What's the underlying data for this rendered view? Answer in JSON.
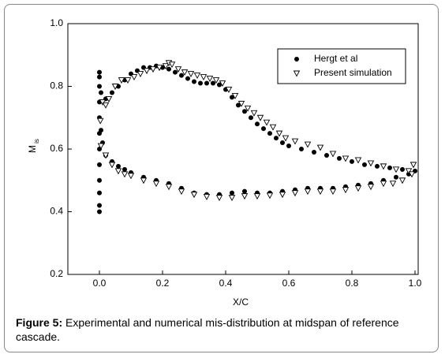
{
  "chart_data": {
    "type": "scatter",
    "xlabel": "X/C",
    "ylabel": "M",
    "ylabel_sub": "is",
    "xlim": [
      -0.1,
      1.01
    ],
    "ylim": [
      0.2,
      1.0
    ],
    "xticks": [
      {
        "value": 0,
        "label": "0.0"
      },
      {
        "value": 0.2,
        "label": "0.2"
      },
      {
        "value": 0.4,
        "label": "0.4"
      },
      {
        "value": 0.6,
        "label": "0.6"
      },
      {
        "value": 0.8,
        "label": "0.8"
      },
      {
        "value": 1.0,
        "label": "1.0"
      }
    ],
    "yticks": [
      {
        "value": 0.2,
        "label": "0.2"
      },
      0.4,
      0.6,
      0.8,
      {
        "value": 1.0,
        "label": "1.0"
      }
    ],
    "legend": "upper right",
    "series": [
      {
        "name": "Hergt et al",
        "color": "#000000",
        "marker": "circle",
        "x": [
          0,
          0,
          0,
          0,
          0,
          0,
          0,
          0,
          0,
          0,
          0,
          0,
          0.005,
          0.02,
          0.04,
          0.06,
          0.08,
          0.1,
          0.12,
          0.14,
          0.16,
          0.18,
          0.2,
          0.22,
          0.24,
          0.26,
          0.28,
          0.3,
          0.32,
          0.34,
          0.36,
          0.38,
          0.4,
          0.42,
          0.44,
          0.46,
          0.48,
          0.5,
          0.52,
          0.54,
          0.56,
          0.58,
          0.6,
          0.64,
          0.68,
          0.72,
          0.76,
          0.8,
          0.84,
          0.88,
          0.92,
          0.96,
          1.0,
          0.005,
          0.01,
          0.02,
          0.04,
          0.06,
          0.08,
          0.1,
          0.14,
          0.18,
          0.22,
          0.26,
          0.3,
          0.34,
          0.38,
          0.42,
          0.46,
          0.5,
          0.54,
          0.58,
          0.62,
          0.66,
          0.7,
          0.74,
          0.78,
          0.82,
          0.86,
          0.9,
          0.94,
          0.98
        ],
        "y": [
          0.4,
          0.42,
          0.46,
          0.5,
          0.55,
          0.6,
          0.65,
          0.7,
          0.75,
          0.8,
          0.83,
          0.845,
          0.78,
          0.76,
          0.78,
          0.8,
          0.82,
          0.84,
          0.85,
          0.86,
          0.86,
          0.865,
          0.86,
          0.855,
          0.845,
          0.835,
          0.825,
          0.815,
          0.81,
          0.81,
          0.81,
          0.805,
          0.79,
          0.765,
          0.74,
          0.72,
          0.7,
          0.68,
          0.665,
          0.65,
          0.635,
          0.62,
          0.61,
          0.6,
          0.59,
          0.58,
          0.57,
          0.56,
          0.55,
          0.545,
          0.54,
          0.535,
          0.53,
          0.66,
          0.62,
          0.58,
          0.56,
          0.545,
          0.535,
          0.525,
          0.51,
          0.5,
          0.49,
          0.475,
          0.46,
          0.455,
          0.455,
          0.46,
          0.465,
          0.46,
          0.46,
          0.465,
          0.47,
          0.475,
          0.475,
          0.475,
          0.48,
          0.485,
          0.49,
          0.5,
          0.51,
          0.52
        ]
      },
      {
        "name": "Present simulation",
        "color": "#000000",
        "marker": "triangle-down",
        "x": [
          0.003,
          0.01,
          0.02,
          0.03,
          0.05,
          0.07,
          0.09,
          0.11,
          0.13,
          0.15,
          0.17,
          0.19,
          0.21,
          0.22,
          0.23,
          0.25,
          0.27,
          0.29,
          0.31,
          0.33,
          0.35,
          0.37,
          0.39,
          0.41,
          0.43,
          0.45,
          0.47,
          0.49,
          0.51,
          0.53,
          0.55,
          0.57,
          0.59,
          0.62,
          0.66,
          0.7,
          0.74,
          0.78,
          0.82,
          0.86,
          0.9,
          0.94,
          0.98,
          0.995,
          0.005,
          0.02,
          0.04,
          0.06,
          0.08,
          0.1,
          0.14,
          0.18,
          0.22,
          0.26,
          0.3,
          0.34,
          0.38,
          0.42,
          0.46,
          0.5,
          0.54,
          0.58,
          0.62,
          0.66,
          0.7,
          0.74,
          0.78,
          0.82,
          0.86,
          0.9,
          0.93,
          0.96,
          0.99
        ],
        "y": [
          0.69,
          0.75,
          0.74,
          0.76,
          0.8,
          0.82,
          0.82,
          0.83,
          0.84,
          0.85,
          0.855,
          0.86,
          0.865,
          0.875,
          0.87,
          0.855,
          0.845,
          0.84,
          0.835,
          0.83,
          0.825,
          0.82,
          0.81,
          0.79,
          0.77,
          0.745,
          0.73,
          0.715,
          0.7,
          0.685,
          0.67,
          0.65,
          0.635,
          0.625,
          0.615,
          0.605,
          0.585,
          0.57,
          0.565,
          0.555,
          0.545,
          0.535,
          0.53,
          0.55,
          0.61,
          0.58,
          0.55,
          0.53,
          0.52,
          0.515,
          0.5,
          0.49,
          0.48,
          0.465,
          0.455,
          0.448,
          0.445,
          0.445,
          0.45,
          0.45,
          0.452,
          0.455,
          0.46,
          0.465,
          0.465,
          0.465,
          0.47,
          0.475,
          0.48,
          0.49,
          0.49,
          0.5,
          0.52
        ]
      }
    ]
  },
  "caption_label": "Figure 5:",
  "caption_text": " Experimental and numerical mis-distribution at midspan of reference cascade."
}
